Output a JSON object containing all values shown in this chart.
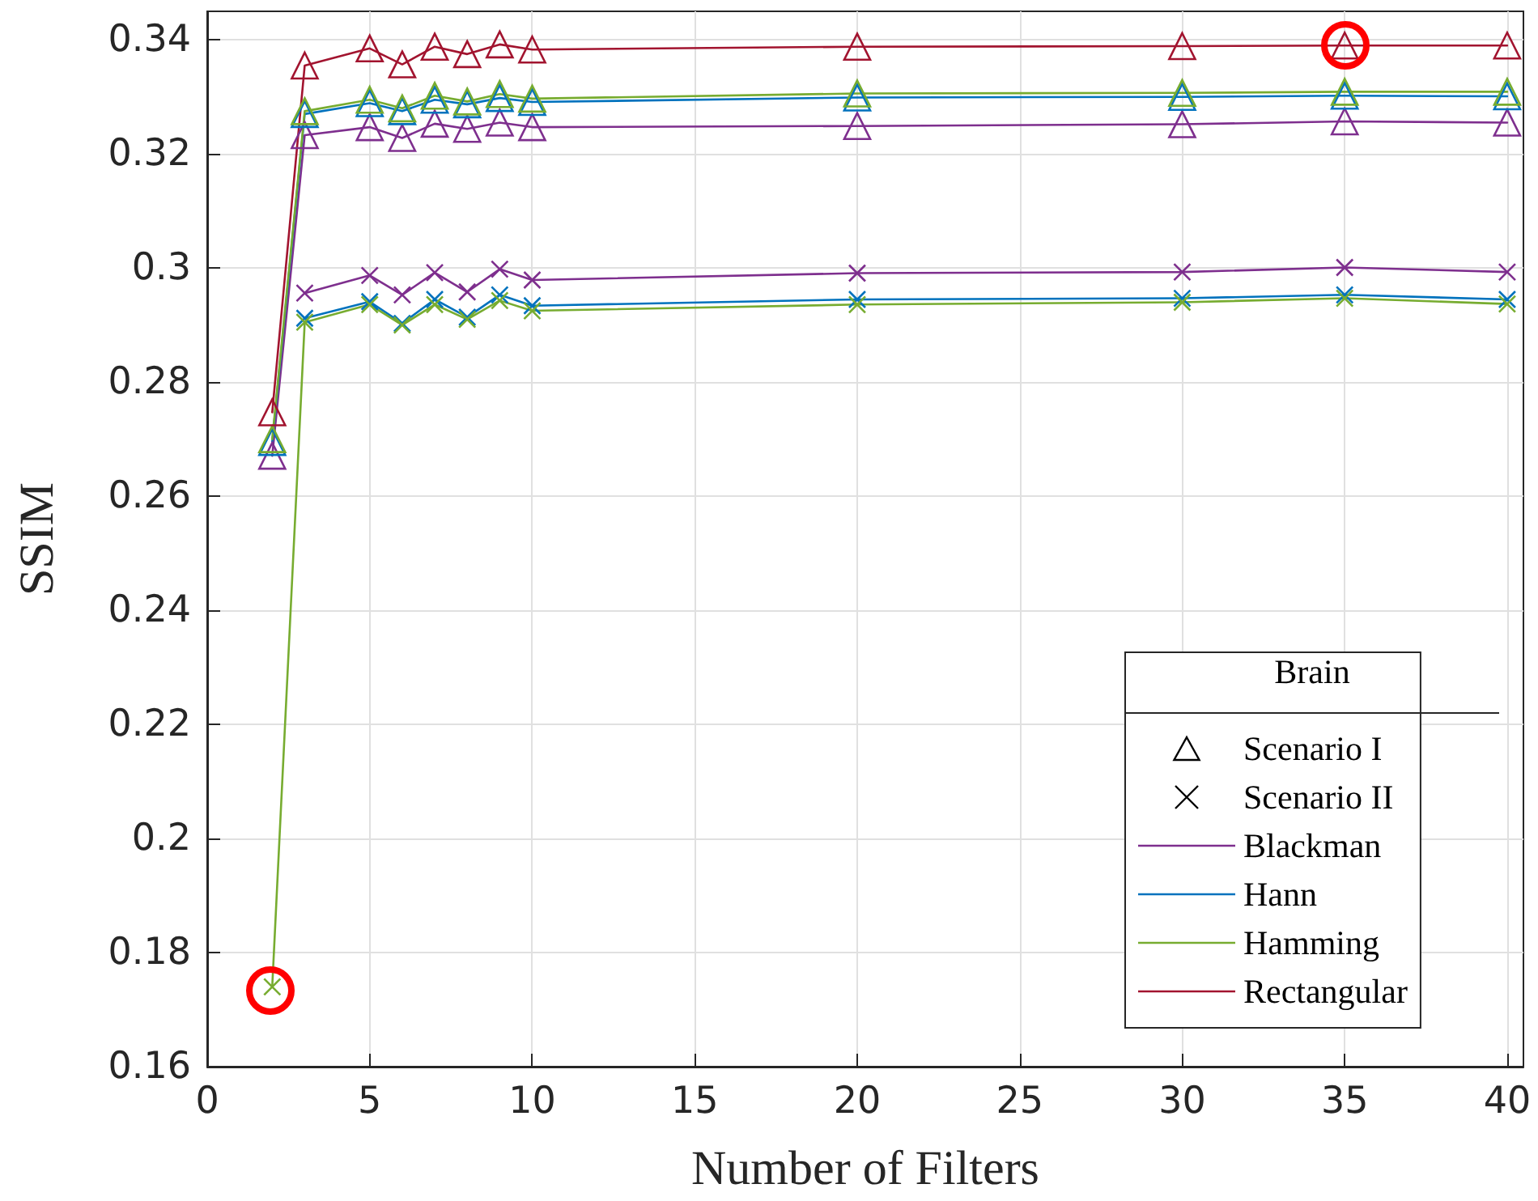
{
  "chart_data": {
    "type": "line",
    "xlabel": "Number of Filters",
    "ylabel": "SSIM",
    "legend_title": "Brain",
    "legend": "bottom right",
    "grid": true,
    "xlim": [
      0,
      40.5
    ],
    "xticks": [
      0,
      5,
      10,
      15,
      20,
      25,
      30,
      35,
      40
    ],
    "ylim": [
      0.16,
      0.345
    ],
    "yticks": [
      0.16,
      0.18,
      0.2,
      0.22,
      0.24,
      0.26,
      0.28,
      0.3,
      0.32,
      0.34
    ],
    "x": [
      2,
      3,
      5,
      6,
      7,
      8,
      9,
      10,
      20,
      30,
      35,
      40
    ],
    "series": [
      {
        "name": "Scenario I",
        "color": "#000000",
        "marker": "triangle",
        "line_style": "none",
        "values": [
          null,
          null,
          null,
          null,
          null,
          null,
          null,
          null,
          null,
          null,
          null,
          null
        ]
      },
      {
        "name": "Scenario II",
        "color": "#000000",
        "marker": "cross",
        "line_style": "none",
        "values": [
          null,
          null,
          null,
          null,
          null,
          null,
          null,
          null,
          null,
          null,
          null,
          null
        ]
      },
      {
        "name": "Blackman",
        "color": "#7e2f8e",
        "marker": "triangle",
        "values": [
          0.2671,
          0.3233,
          0.3247,
          0.3228,
          0.3253,
          0.3244,
          0.3255,
          0.3247,
          0.3249,
          0.3252,
          0.3257,
          0.3255
        ]
      },
      {
        "name": "Hann",
        "color": "#0072bd",
        "marker": "triangle",
        "values": [
          0.2695,
          0.327,
          0.3289,
          0.3275,
          0.3295,
          0.3287,
          0.3298,
          0.3291,
          0.3299,
          0.33,
          0.3302,
          0.3301
        ]
      },
      {
        "name": "Hamming",
        "color": "#77ac30",
        "marker": "triangle",
        "values": [
          0.27,
          0.3275,
          0.3295,
          0.328,
          0.3302,
          0.3292,
          0.3305,
          0.3297,
          0.3306,
          0.3307,
          0.3309,
          0.3309
        ]
      },
      {
        "name": "Rectangular",
        "color": "#a2142f",
        "marker": "triangle",
        "values": [
          0.2747,
          0.3355,
          0.3385,
          0.3357,
          0.3388,
          0.3375,
          0.3392,
          0.3383,
          0.3388,
          0.3389,
          0.339,
          0.339
        ]
      },
      {
        "color": "#7e2f8e",
        "marker": "cross",
        "values": [
          null,
          0.2956,
          0.2987,
          0.2953,
          0.2992,
          0.2958,
          0.2998,
          0.2979,
          0.2991,
          0.2993,
          0.3001,
          0.2993
        ]
      },
      {
        "color": "#0072bd",
        "marker": "cross",
        "values": [
          null,
          0.2912,
          0.2941,
          0.2903,
          0.2945,
          0.2914,
          0.2953,
          0.2934,
          0.2945,
          0.2947,
          0.2953,
          0.2945
        ]
      },
      {
        "color": "#77ac30",
        "marker": "cross",
        "values": [
          0.174,
          0.2905,
          0.2936,
          0.29,
          0.2936,
          0.291,
          0.2943,
          0.2925,
          0.2936,
          0.294,
          0.2947,
          0.2937
        ]
      }
    ]
  }
}
